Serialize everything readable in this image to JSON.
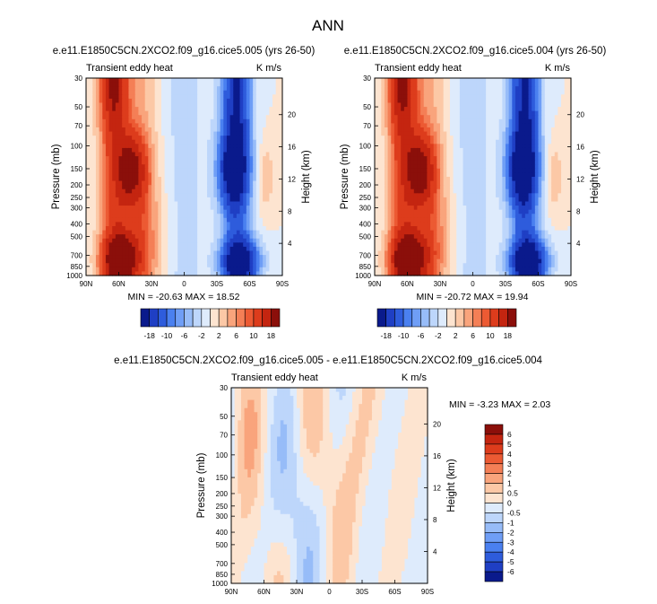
{
  "page": {
    "title": "ANN"
  },
  "panels": [
    {
      "id": "p1",
      "heading": "e.e11.E1850C5CN.2XCO2.f09_g16.cice5.005 (yrs 26-50)",
      "left_label": "Transient eddy heat",
      "right_label": "K m/s",
      "minmax": "MIN = -20.63   MAX = 18.52",
      "min": -20.63,
      "max": 18.52
    },
    {
      "id": "p2",
      "heading": "e.e11.E1850C5CN.2XCO2.f09_g16.cice5.004 (yrs 26-50)",
      "left_label": "Transient eddy heat",
      "right_label": "K m/s",
      "minmax": "MIN = -20.72   MAX = 19.94",
      "min": -20.72,
      "max": 19.94
    },
    {
      "id": "p3",
      "heading": "e.e11.E1850C5CN.2XCO2.f09_g16.cice5.005 - e.e11.E1850C5CN.2XCO2.f09_g16.cice5.004",
      "left_label": "Transient eddy heat",
      "right_label": "K m/s",
      "minmax": "MIN = -3.23   MAX =  2.03",
      "min": -3.23,
      "max": 2.03
    }
  ],
  "axes": {
    "ylabel": "Pressure (mb)",
    "y2label": "Height (km)",
    "pressure_ticks": [
      "30",
      "50",
      "70",
      "100",
      "150",
      "200",
      "250",
      "300",
      "400",
      "500",
      "700",
      "850",
      "1000"
    ],
    "height_ticks": [
      "20",
      "16",
      "12",
      "8",
      "4"
    ],
    "lat_ticks": [
      "90N",
      "60N",
      "30N",
      "0",
      "30S",
      "60S",
      "90S"
    ]
  },
  "colorbar_main": {
    "labels": [
      "-18",
      "-10",
      "-6",
      "-2",
      "2",
      "6",
      "10",
      "18"
    ],
    "colors": [
      "#0a1a8c",
      "#1f3fc4",
      "#2e5cdc",
      "#4a80f0",
      "#6f9ef6",
      "#97bcf8",
      "#bdd6fb",
      "#deebfc",
      "#fde4d0",
      "#fcc8a6",
      "#f9a47c",
      "#f47f56",
      "#ec5a33",
      "#dd3c1c",
      "#c42510",
      "#8b0f0a"
    ]
  },
  "colorbar_diff": {
    "labels": [
      "6",
      "5",
      "4",
      "3",
      "2",
      "1",
      "0.5",
      "0",
      "-0.5",
      "-1",
      "-2",
      "-3",
      "-4",
      "-5",
      "-6"
    ],
    "colors": [
      "#8b0f0a",
      "#c42510",
      "#dd3c1c",
      "#ec5a33",
      "#f47f56",
      "#f9a47c",
      "#fcc8a6",
      "#fde4d0",
      "#deebfc",
      "#bdd6fb",
      "#97bcf8",
      "#6f9ef6",
      "#4a80f0",
      "#2e5cdc",
      "#1f3fc4",
      "#0a1a8c"
    ]
  },
  "chart_data": [
    {
      "type": "heatmap",
      "title": "e.e11.E1850C5CN.2XCO2.f09_g16.cice5.005 (yrs 26-50)",
      "xlabel": "",
      "ylabel": "Pressure (mb)",
      "y2label": "Height (km)",
      "x_ticks": [
        "90N",
        "60N",
        "30N",
        "0",
        "30S",
        "60S",
        "90S"
      ],
      "y_ticks": [
        30,
        50,
        70,
        100,
        150,
        200,
        250,
        300,
        400,
        500,
        700,
        850,
        1000
      ],
      "y_scale": "log",
      "min": -20.63,
      "max": 18.52,
      "units": "K m/s"
    },
    {
      "type": "heatmap",
      "title": "e.e11.E1850C5CN.2XCO2.f09_g16.cice5.004 (yrs 26-50)",
      "xlabel": "",
      "ylabel": "Pressure (mb)",
      "y2label": "Height (km)",
      "x_ticks": [
        "90N",
        "60N",
        "30N",
        "0",
        "30S",
        "60S",
        "90S"
      ],
      "y_ticks": [
        30,
        50,
        70,
        100,
        150,
        200,
        250,
        300,
        400,
        500,
        700,
        850,
        1000
      ],
      "y_scale": "log",
      "min": -20.72,
      "max": 19.94,
      "units": "K m/s"
    },
    {
      "type": "heatmap",
      "title": "e.e11.E1850C5CN.2XCO2.f09_g16.cice5.005 - e.e11.E1850C5CN.2XCO2.f09_g16.cice5.004",
      "xlabel": "",
      "ylabel": "Pressure (mb)",
      "y2label": "Height (km)",
      "x_ticks": [
        "90N",
        "60N",
        "30N",
        "0",
        "30S",
        "60S",
        "90S"
      ],
      "y_ticks": [
        30,
        50,
        70,
        100,
        150,
        200,
        250,
        300,
        400,
        500,
        700,
        850,
        1000
      ],
      "y_scale": "log",
      "min": -3.23,
      "max": 2.03,
      "units": "K m/s"
    }
  ]
}
